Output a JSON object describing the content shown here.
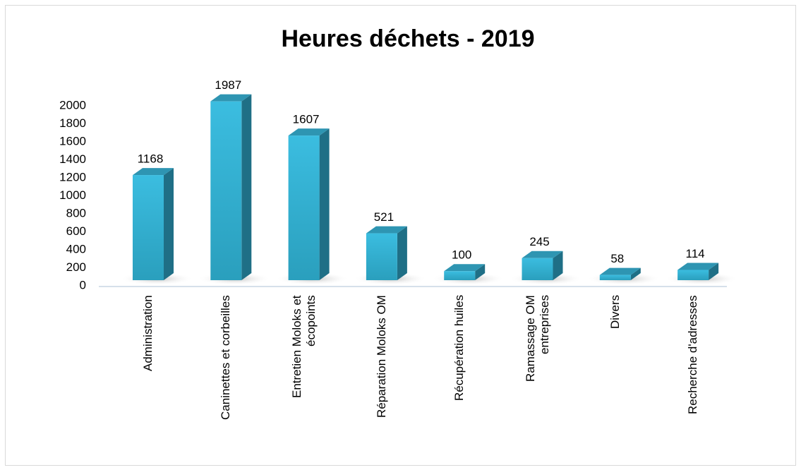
{
  "chart_data": {
    "type": "bar3d",
    "title": "Heures déchets - 2019",
    "categories": [
      "Administration",
      "Caninettes et corbeilles",
      "Entretien Moloks et écopoints",
      "Réparation Moloks OM",
      "Récupération huiles",
      "Ramassage OM entreprises",
      "Divers",
      "Recherche d'adresses"
    ],
    "values": [
      1168,
      1987,
      1607,
      521,
      100,
      245,
      58,
      114
    ],
    "color": "#35b5d6",
    "ylim": [
      0,
      2000
    ],
    "yticks": [
      0,
      200,
      400,
      600,
      800,
      1000,
      1200,
      1400,
      1600,
      1800,
      2000
    ],
    "grid": false
  }
}
